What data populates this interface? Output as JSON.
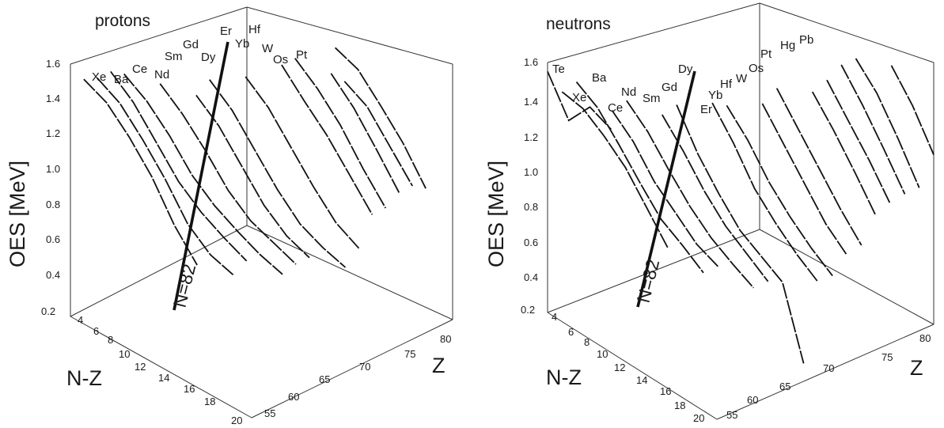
{
  "panels": [
    {
      "title": "protons",
      "x_axis_label": "N-Z",
      "y_axis_label": "OES [MeV]",
      "z_axis_label": "Z",
      "oes_ticks": [
        "1.6",
        "1.4",
        "1.2",
        "1.0",
        "0.8",
        "0.6",
        "0.4",
        "0.2"
      ],
      "nz_ticks": [
        "4",
        "6",
        "8",
        "10",
        "12",
        "14",
        "16",
        "18",
        "20"
      ],
      "z_ticks": [
        "55",
        "60",
        "65",
        "70",
        "75",
        "80"
      ],
      "element_labels": [
        "Xe",
        "Ba",
        "Ce",
        "Nd",
        "Sm",
        "Gd",
        "Dy",
        "Er",
        "Yb",
        "Hf",
        "W",
        "Os",
        "Pt"
      ],
      "line_label": "N=82"
    },
    {
      "title": "neutrons",
      "x_axis_label": "N-Z",
      "y_axis_label": "OES [MeV]",
      "z_axis_label": "Z",
      "oes_ticks": [
        "1.6",
        "1.4",
        "1.2",
        "1.0",
        "0.8",
        "0.6",
        "0.4",
        "0.2"
      ],
      "nz_ticks": [
        "4",
        "6",
        "8",
        "10",
        "12",
        "14",
        "16",
        "18",
        "20"
      ],
      "z_ticks": [
        "55",
        "60",
        "65",
        "70",
        "75",
        "80"
      ],
      "element_labels": [
        "Te",
        "Xe",
        "Ba",
        "Ce",
        "Nd",
        "Sm",
        "Gd",
        "Dy",
        "Er",
        "Yb",
        "Hf",
        "W",
        "Os",
        "Pt",
        "Hg",
        "Pb"
      ],
      "line_label": "N=82"
    }
  ],
  "chart_data": [
    {
      "type": "line",
      "title": "protons",
      "xlabel": "N-Z",
      "ylabel": "OES [MeV]",
      "zlabel": "Z",
      "ylim": [
        0.2,
        1.6
      ],
      "series": [
        {
          "name": "Xe",
          "z": 54,
          "nz": [
            4,
            6,
            8,
            10,
            12,
            14
          ],
          "oes": [
            1.48,
            1.42,
            1.3,
            1.15,
            0.95,
            0.8
          ]
        },
        {
          "name": "Ba",
          "z": 56,
          "nz": [
            4,
            6,
            8,
            10,
            12,
            14,
            16
          ],
          "oes": [
            1.45,
            1.38,
            1.25,
            1.1,
            0.92,
            0.82,
            0.78
          ]
        },
        {
          "name": "Ce",
          "z": 58,
          "nz": [
            4,
            6,
            8,
            10,
            12,
            14,
            16
          ],
          "oes": [
            1.45,
            1.35,
            1.2,
            1.05,
            0.95,
            0.88,
            0.82
          ]
        },
        {
          "name": "Nd",
          "z": 60,
          "nz": [
            4,
            6,
            8,
            10,
            12,
            14,
            16,
            18
          ],
          "oes": [
            1.4,
            1.32,
            1.2,
            1.05,
            0.95,
            0.88,
            0.82,
            0.78
          ]
        },
        {
          "name": "Sm",
          "z": 62,
          "nz": [
            6,
            8,
            10,
            12,
            14,
            16,
            18
          ],
          "oes": [
            1.38,
            1.28,
            1.15,
            1.0,
            0.9,
            0.85,
            0.8
          ]
        },
        {
          "name": "Gd",
          "z": 64,
          "nz": [
            8,
            10,
            12,
            14,
            16,
            18
          ],
          "oes": [
            1.35,
            1.25,
            1.1,
            0.95,
            0.85,
            0.8
          ]
        },
        {
          "name": "Dy",
          "z": 66,
          "nz": [
            8,
            10,
            12,
            14,
            16,
            18,
            20
          ],
          "oes": [
            1.4,
            1.3,
            1.15,
            1.0,
            0.88,
            0.82,
            0.78
          ]
        },
        {
          "name": "Er",
          "z": 68,
          "nz": [
            10,
            12,
            14,
            16,
            18,
            20
          ],
          "oes": [
            1.45,
            1.35,
            1.2,
            1.05,
            0.92,
            0.85
          ]
        },
        {
          "name": "Yb",
          "z": 70,
          "nz": [
            12,
            14,
            16,
            18,
            20
          ],
          "oes": [
            1.55,
            1.42,
            1.3,
            1.15,
            1.0
          ]
        },
        {
          "name": "Hf",
          "z": 72,
          "nz": [
            12,
            14,
            16,
            18,
            20
          ],
          "oes": [
            1.55,
            1.45,
            1.32,
            1.15,
            1.0
          ]
        },
        {
          "name": "W",
          "z": 74,
          "nz": [
            14,
            16,
            18,
            20
          ],
          "oes": [
            1.5,
            1.38,
            1.22,
            1.05
          ]
        },
        {
          "name": "Os",
          "z": 76,
          "nz": [
            14,
            16,
            18,
            20
          ],
          "oes": [
            1.42,
            1.35,
            1.2,
            1.05
          ]
        },
        {
          "name": "Pt",
          "z": 78,
          "nz": [
            12,
            14,
            16,
            18,
            20
          ],
          "oes": [
            1.5,
            1.45,
            1.32,
            1.18,
            1.0
          ]
        }
      ]
    },
    {
      "type": "line",
      "title": "neutrons",
      "xlabel": "N-Z",
      "ylabel": "OES [MeV]",
      "zlabel": "Z",
      "ylim": [
        0.2,
        1.6
      ],
      "series": [
        {
          "name": "Te",
          "z": 52,
          "nz": [
            4,
            6,
            8,
            10
          ],
          "oes": [
            1.55,
            1.35,
            1.5,
            1.45
          ]
        },
        {
          "name": "Xe",
          "z": 54,
          "nz": [
            4,
            6,
            8,
            10,
            12,
            14
          ],
          "oes": [
            1.4,
            1.38,
            1.3,
            1.2,
            1.05,
            0.9
          ]
        },
        {
          "name": "Ba",
          "z": 56,
          "nz": [
            4,
            6,
            8,
            10,
            12,
            14,
            16
          ],
          "oes": [
            1.42,
            1.35,
            1.22,
            1.08,
            0.95,
            0.88,
            0.8
          ]
        },
        {
          "name": "Ce",
          "z": 58,
          "nz": [
            6,
            8,
            10,
            12,
            14,
            16
          ],
          "oes": [
            1.3,
            1.2,
            1.05,
            0.95,
            0.85,
            0.8
          ]
        },
        {
          "name": "Nd",
          "z": 60,
          "nz": [
            6,
            8,
            10,
            12,
            14,
            16,
            18
          ],
          "oes": [
            1.32,
            1.22,
            1.08,
            0.95,
            0.85,
            0.78,
            0.72
          ]
        },
        {
          "name": "Sm",
          "z": 62,
          "nz": [
            8,
            10,
            12,
            14,
            16,
            18
          ],
          "oes": [
            1.28,
            1.15,
            1.0,
            0.88,
            0.8,
            0.72
          ]
        },
        {
          "name": "Gd",
          "z": 64,
          "nz": [
            8,
            10,
            12,
            14,
            16,
            18,
            20
          ],
          "oes": [
            1.3,
            1.1,
            0.95,
            0.82,
            0.75,
            0.68,
            0.3
          ]
        },
        {
          "name": "Dy",
          "z": 66,
          "nz": [
            10,
            12,
            14,
            16,
            18,
            20
          ],
          "oes": [
            1.35,
            1.2,
            1.02,
            0.9,
            0.8,
            0.72
          ]
        },
        {
          "name": "Er",
          "z": 68,
          "nz": [
            10,
            12,
            14,
            16,
            18,
            20
          ],
          "oes": [
            1.3,
            1.18,
            1.02,
            0.9,
            0.8,
            0.72
          ]
        },
        {
          "name": "Yb",
          "z": 70,
          "nz": [
            12,
            14,
            16,
            18,
            20
          ],
          "oes": [
            1.35,
            1.2,
            1.05,
            0.9,
            0.8
          ]
        },
        {
          "name": "Hf",
          "z": 72,
          "nz": [
            12,
            14,
            16,
            18,
            20
          ],
          "oes": [
            1.4,
            1.25,
            1.1,
            0.95,
            0.82
          ]
        },
        {
          "name": "W",
          "z": 74,
          "nz": [
            14,
            16,
            18,
            20
          ],
          "oes": [
            1.42,
            1.28,
            1.12,
            0.95
          ]
        },
        {
          "name": "Os",
          "z": 76,
          "nz": [
            14,
            16,
            18,
            20
          ],
          "oes": [
            1.45,
            1.3,
            1.15,
            0.98
          ]
        },
        {
          "name": "Pt",
          "z": 78,
          "nz": [
            14,
            16,
            18,
            20
          ],
          "oes": [
            1.5,
            1.35,
            1.18,
            1.0
          ]
        },
        {
          "name": "Hg",
          "z": 80,
          "nz": [
            14,
            16,
            18,
            20
          ],
          "oes": [
            1.5,
            1.38,
            1.2,
            1.0
          ]
        },
        {
          "name": "Pb",
          "z": 82,
          "nz": [
            16,
            18,
            20
          ],
          "oes": [
            1.5,
            1.35,
            1.15
          ]
        }
      ]
    }
  ]
}
